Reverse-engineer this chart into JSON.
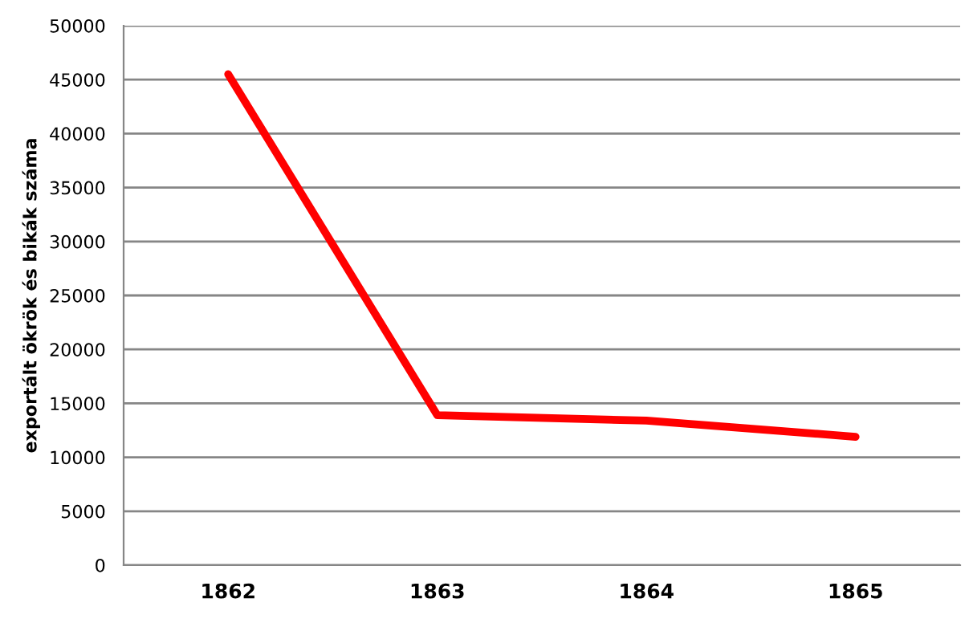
{
  "chart_data": {
    "type": "line",
    "ylabel": "exportált ökrök és bikák száma",
    "categories": [
      "1862",
      "1863",
      "1864",
      "1865"
    ],
    "series": [
      {
        "color": "#ff0000",
        "values": [
          45500,
          13900,
          13400,
          11900
        ]
      }
    ],
    "ylim": [
      0,
      50000
    ],
    "yticks": [
      0,
      5000,
      10000,
      15000,
      20000,
      25000,
      30000,
      35000,
      40000,
      45000,
      50000
    ],
    "grid": "y",
    "legend": false,
    "marker": "none",
    "line_style": "solid"
  }
}
